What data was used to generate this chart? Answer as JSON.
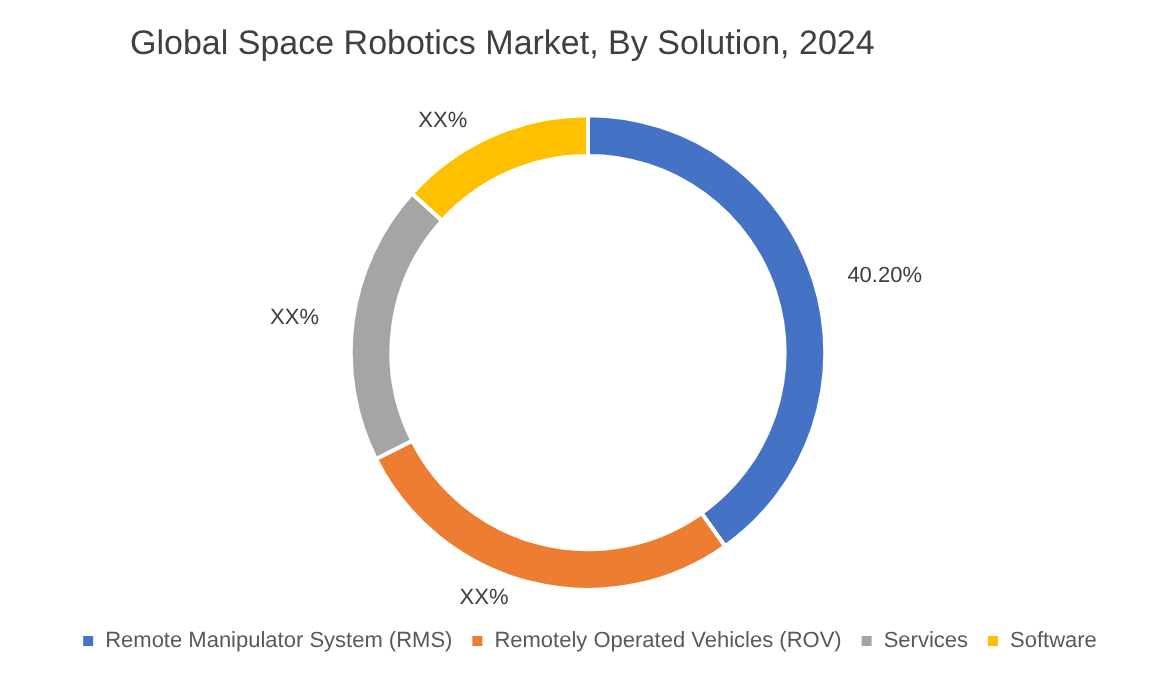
{
  "chart_data": {
    "type": "donut",
    "title": "Global Space Robotics Market, By Solution, 2024",
    "categories": [
      "Remote Manipulator System (RMS)",
      "Remotely Operated Vehicles (ROV)",
      "Services",
      "Software"
    ],
    "values": [
      40.2,
      27.4,
      19.1,
      13.3
    ],
    "colors": [
      "#4472c4",
      "#ed7d31",
      "#a5a5a5",
      "#ffc000"
    ],
    "value_labels": [
      "40.20%",
      "XX%",
      "XX%",
      "XX%"
    ],
    "legend": "bottom"
  }
}
